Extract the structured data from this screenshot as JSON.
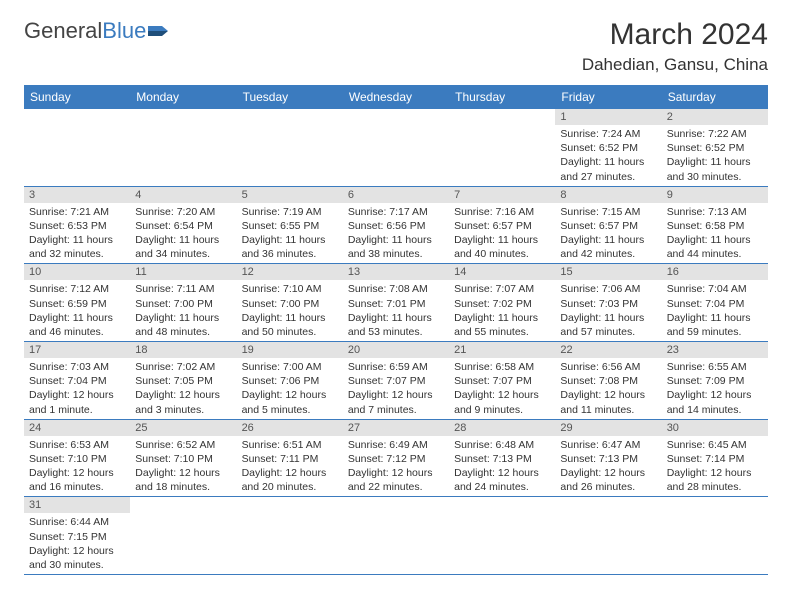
{
  "logo": {
    "general": "General",
    "blue": "Blue"
  },
  "title": "March 2024",
  "location": "Dahedian, Gansu, China",
  "colors": {
    "header_bg": "#3b7bbf",
    "daynum_bg": "#e3e3e3",
    "border": "#3b7bbf",
    "text": "#333333"
  },
  "dayHeaders": [
    "Sunday",
    "Monday",
    "Tuesday",
    "Wednesday",
    "Thursday",
    "Friday",
    "Saturday"
  ],
  "grid": [
    [
      null,
      null,
      null,
      null,
      null,
      {
        "n": "1",
        "sr": "Sunrise: 7:24 AM",
        "ss": "Sunset: 6:52 PM",
        "dl": "Daylight: 11 hours and 27 minutes."
      },
      {
        "n": "2",
        "sr": "Sunrise: 7:22 AM",
        "ss": "Sunset: 6:52 PM",
        "dl": "Daylight: 11 hours and 30 minutes."
      }
    ],
    [
      {
        "n": "3",
        "sr": "Sunrise: 7:21 AM",
        "ss": "Sunset: 6:53 PM",
        "dl": "Daylight: 11 hours and 32 minutes."
      },
      {
        "n": "4",
        "sr": "Sunrise: 7:20 AM",
        "ss": "Sunset: 6:54 PM",
        "dl": "Daylight: 11 hours and 34 minutes."
      },
      {
        "n": "5",
        "sr": "Sunrise: 7:19 AM",
        "ss": "Sunset: 6:55 PM",
        "dl": "Daylight: 11 hours and 36 minutes."
      },
      {
        "n": "6",
        "sr": "Sunrise: 7:17 AM",
        "ss": "Sunset: 6:56 PM",
        "dl": "Daylight: 11 hours and 38 minutes."
      },
      {
        "n": "7",
        "sr": "Sunrise: 7:16 AM",
        "ss": "Sunset: 6:57 PM",
        "dl": "Daylight: 11 hours and 40 minutes."
      },
      {
        "n": "8",
        "sr": "Sunrise: 7:15 AM",
        "ss": "Sunset: 6:57 PM",
        "dl": "Daylight: 11 hours and 42 minutes."
      },
      {
        "n": "9",
        "sr": "Sunrise: 7:13 AM",
        "ss": "Sunset: 6:58 PM",
        "dl": "Daylight: 11 hours and 44 minutes."
      }
    ],
    [
      {
        "n": "10",
        "sr": "Sunrise: 7:12 AM",
        "ss": "Sunset: 6:59 PM",
        "dl": "Daylight: 11 hours and 46 minutes."
      },
      {
        "n": "11",
        "sr": "Sunrise: 7:11 AM",
        "ss": "Sunset: 7:00 PM",
        "dl": "Daylight: 11 hours and 48 minutes."
      },
      {
        "n": "12",
        "sr": "Sunrise: 7:10 AM",
        "ss": "Sunset: 7:00 PM",
        "dl": "Daylight: 11 hours and 50 minutes."
      },
      {
        "n": "13",
        "sr": "Sunrise: 7:08 AM",
        "ss": "Sunset: 7:01 PM",
        "dl": "Daylight: 11 hours and 53 minutes."
      },
      {
        "n": "14",
        "sr": "Sunrise: 7:07 AM",
        "ss": "Sunset: 7:02 PM",
        "dl": "Daylight: 11 hours and 55 minutes."
      },
      {
        "n": "15",
        "sr": "Sunrise: 7:06 AM",
        "ss": "Sunset: 7:03 PM",
        "dl": "Daylight: 11 hours and 57 minutes."
      },
      {
        "n": "16",
        "sr": "Sunrise: 7:04 AM",
        "ss": "Sunset: 7:04 PM",
        "dl": "Daylight: 11 hours and 59 minutes."
      }
    ],
    [
      {
        "n": "17",
        "sr": "Sunrise: 7:03 AM",
        "ss": "Sunset: 7:04 PM",
        "dl": "Daylight: 12 hours and 1 minute."
      },
      {
        "n": "18",
        "sr": "Sunrise: 7:02 AM",
        "ss": "Sunset: 7:05 PM",
        "dl": "Daylight: 12 hours and 3 minutes."
      },
      {
        "n": "19",
        "sr": "Sunrise: 7:00 AM",
        "ss": "Sunset: 7:06 PM",
        "dl": "Daylight: 12 hours and 5 minutes."
      },
      {
        "n": "20",
        "sr": "Sunrise: 6:59 AM",
        "ss": "Sunset: 7:07 PM",
        "dl": "Daylight: 12 hours and 7 minutes."
      },
      {
        "n": "21",
        "sr": "Sunrise: 6:58 AM",
        "ss": "Sunset: 7:07 PM",
        "dl": "Daylight: 12 hours and 9 minutes."
      },
      {
        "n": "22",
        "sr": "Sunrise: 6:56 AM",
        "ss": "Sunset: 7:08 PM",
        "dl": "Daylight: 12 hours and 11 minutes."
      },
      {
        "n": "23",
        "sr": "Sunrise: 6:55 AM",
        "ss": "Sunset: 7:09 PM",
        "dl": "Daylight: 12 hours and 14 minutes."
      }
    ],
    [
      {
        "n": "24",
        "sr": "Sunrise: 6:53 AM",
        "ss": "Sunset: 7:10 PM",
        "dl": "Daylight: 12 hours and 16 minutes."
      },
      {
        "n": "25",
        "sr": "Sunrise: 6:52 AM",
        "ss": "Sunset: 7:10 PM",
        "dl": "Daylight: 12 hours and 18 minutes."
      },
      {
        "n": "26",
        "sr": "Sunrise: 6:51 AM",
        "ss": "Sunset: 7:11 PM",
        "dl": "Daylight: 12 hours and 20 minutes."
      },
      {
        "n": "27",
        "sr": "Sunrise: 6:49 AM",
        "ss": "Sunset: 7:12 PM",
        "dl": "Daylight: 12 hours and 22 minutes."
      },
      {
        "n": "28",
        "sr": "Sunrise: 6:48 AM",
        "ss": "Sunset: 7:13 PM",
        "dl": "Daylight: 12 hours and 24 minutes."
      },
      {
        "n": "29",
        "sr": "Sunrise: 6:47 AM",
        "ss": "Sunset: 7:13 PM",
        "dl": "Daylight: 12 hours and 26 minutes."
      },
      {
        "n": "30",
        "sr": "Sunrise: 6:45 AM",
        "ss": "Sunset: 7:14 PM",
        "dl": "Daylight: 12 hours and 28 minutes."
      }
    ],
    [
      {
        "n": "31",
        "sr": "Sunrise: 6:44 AM",
        "ss": "Sunset: 7:15 PM",
        "dl": "Daylight: 12 hours and 30 minutes."
      },
      null,
      null,
      null,
      null,
      null,
      null
    ]
  ]
}
